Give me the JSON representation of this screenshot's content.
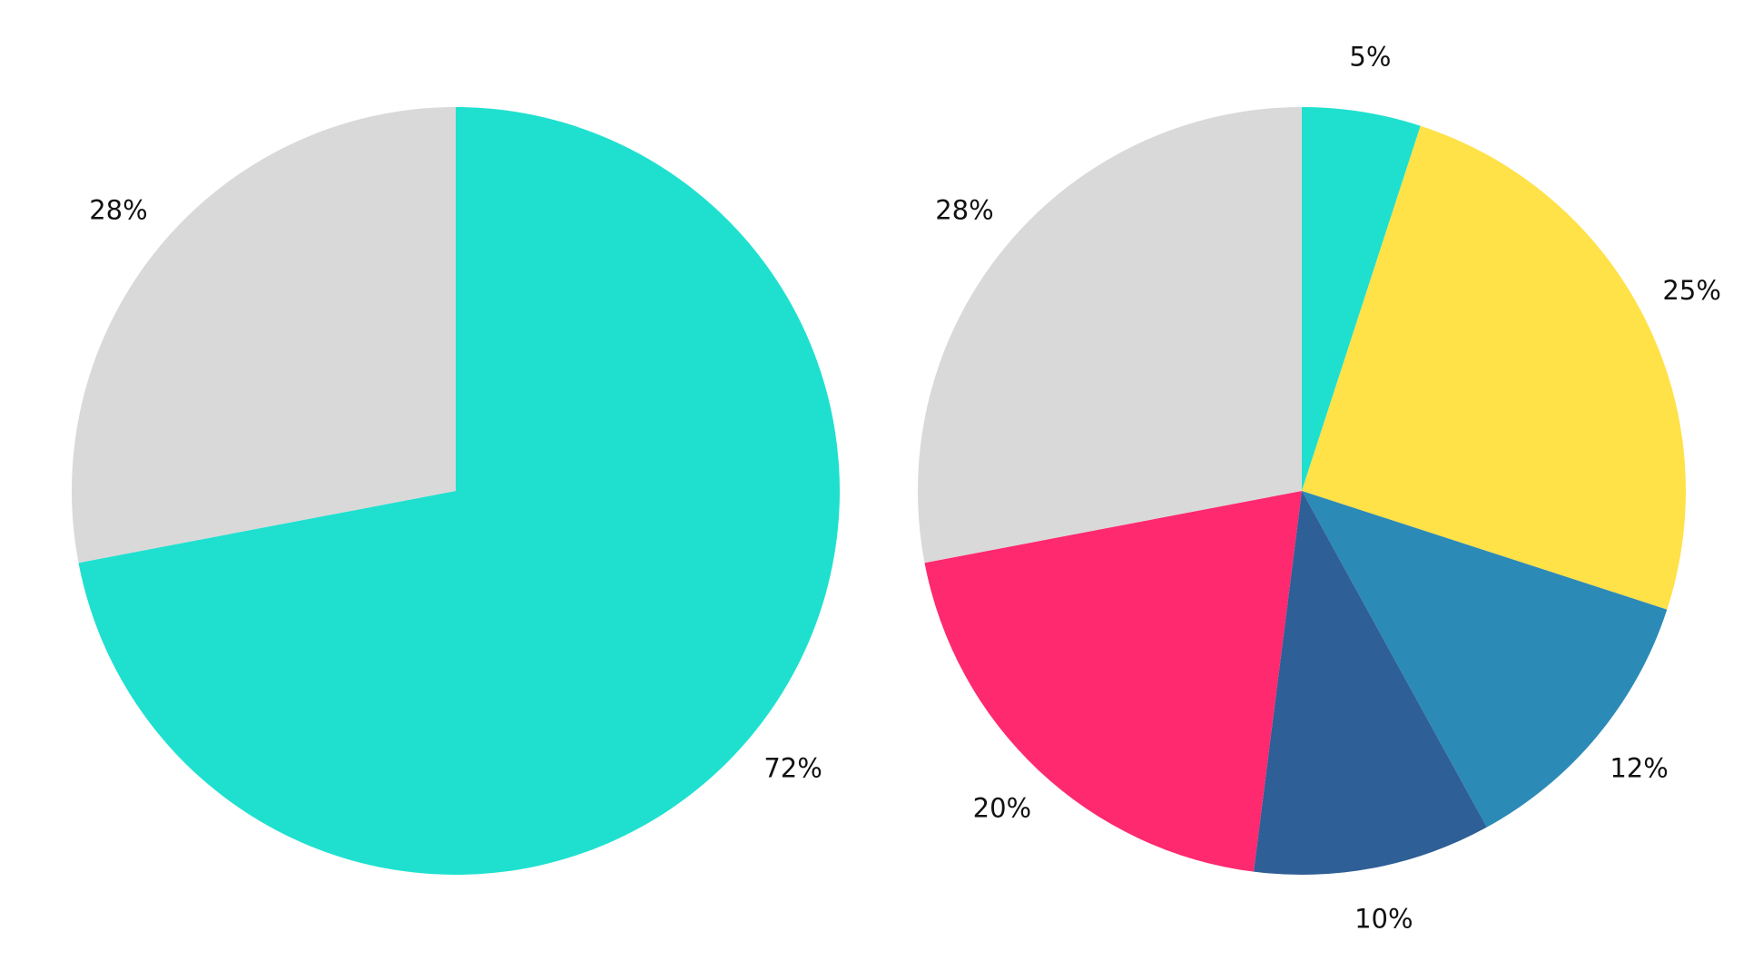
{
  "chart_data": [
    {
      "type": "pie",
      "values": [
        72,
        28
      ],
      "value_labels": [
        "72%",
        "28%"
      ],
      "colors": [
        "#1fe0cf",
        "#d9d9d9"
      ]
    },
    {
      "type": "pie",
      "values": [
        5,
        25,
        12,
        10,
        20,
        28
      ],
      "value_labels": [
        "5%",
        "25%",
        "12%",
        "10%",
        "20%",
        "28%"
      ],
      "colors": [
        "#1fe0cf",
        "#ffe148",
        "#2c8ab6",
        "#2e5f96",
        "#ff2970",
        "#d9d9d9"
      ]
    }
  ]
}
